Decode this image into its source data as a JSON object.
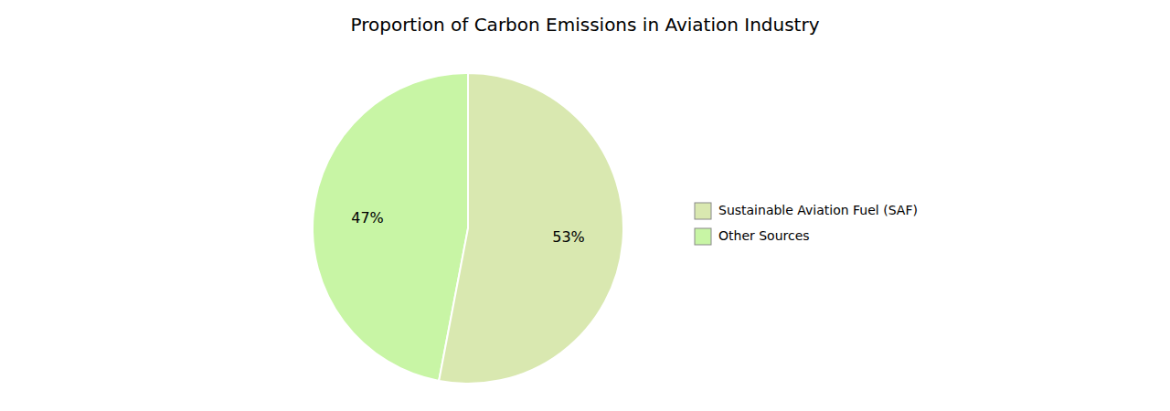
{
  "chart_data": {
    "type": "pie",
    "title": "Proportion of Carbon Emissions in Aviation Industry",
    "categories": [
      "Other Sources",
      "Sustainable Aviation Fuel (SAF)"
    ],
    "values": [
      47,
      53
    ],
    "value_labels": [
      "47%",
      "53%"
    ],
    "colors": [
      "#c8f5a5",
      "#d9e8b0"
    ],
    "data_labels": true,
    "legend": "right"
  }
}
